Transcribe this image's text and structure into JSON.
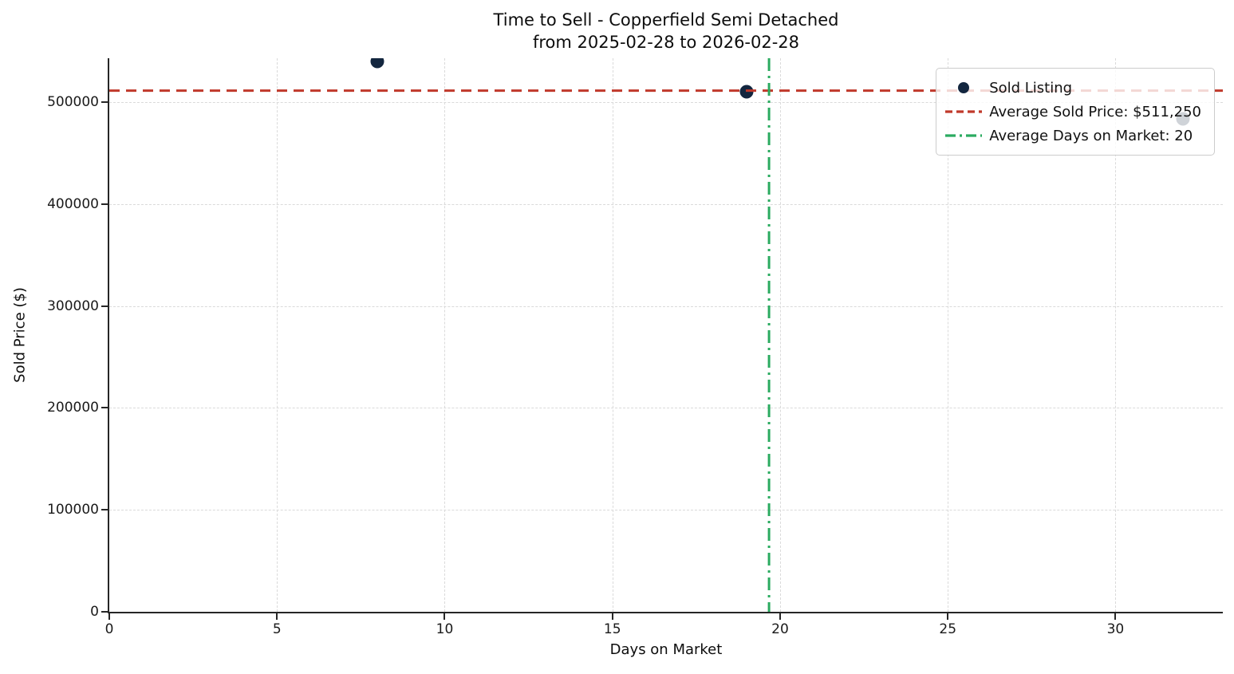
{
  "title": {
    "line1": "Time to Sell - Copperfield Semi Detached",
    "line2": "from 2025-02-28 to 2026-02-28"
  },
  "axis": {
    "xlabel": "Days on Market",
    "ylabel": "Sold Price ($)"
  },
  "legend": {
    "items": [
      {
        "label": "Sold Listing",
        "marker": "dot",
        "color": "#13263f"
      },
      {
        "label": "Average Sold Price: $511,250",
        "marker": "dashed-line",
        "color": "#c0392b"
      },
      {
        "label": "Average Days on Market: 20",
        "marker": "dashdot-line",
        "color": "#2bab60"
      }
    ]
  },
  "chart_data": {
    "type": "scatter",
    "title": "Time to Sell - Copperfield Semi Detached",
    "subtitle": "from 2025-02-28 to 2026-02-28",
    "xlabel": "Days on Market",
    "ylabel": "Sold Price ($)",
    "series": [
      {
        "name": "Sold Listing",
        "color": "#13263f",
        "points": [
          [
            8,
            540000
          ],
          [
            19,
            510000
          ],
          [
            32,
            483750
          ]
        ]
      }
    ],
    "reference_lines": [
      {
        "name": "average-sold-price",
        "label": "Average Sold Price: $511,250",
        "orientation": "horizontal",
        "value": 511250,
        "style": "dashed",
        "color": "#c0392b"
      },
      {
        "name": "average-days-on-market",
        "label": "Average Days on Market: 20",
        "orientation": "vertical",
        "value": 19.67,
        "style": "dashdot",
        "color": "#2bab60"
      }
    ],
    "x_ticks": [
      0,
      5,
      10,
      15,
      20,
      25,
      30
    ],
    "y_ticks": [
      0,
      100000,
      200000,
      300000,
      400000,
      500000
    ],
    "xlim": [
      0,
      33.2
    ],
    "ylim": [
      0,
      543000
    ],
    "grid": true,
    "grid_color": "#dadada",
    "spine_color": "#262626",
    "background": "#ffffff",
    "legend_position": "upper right"
  }
}
